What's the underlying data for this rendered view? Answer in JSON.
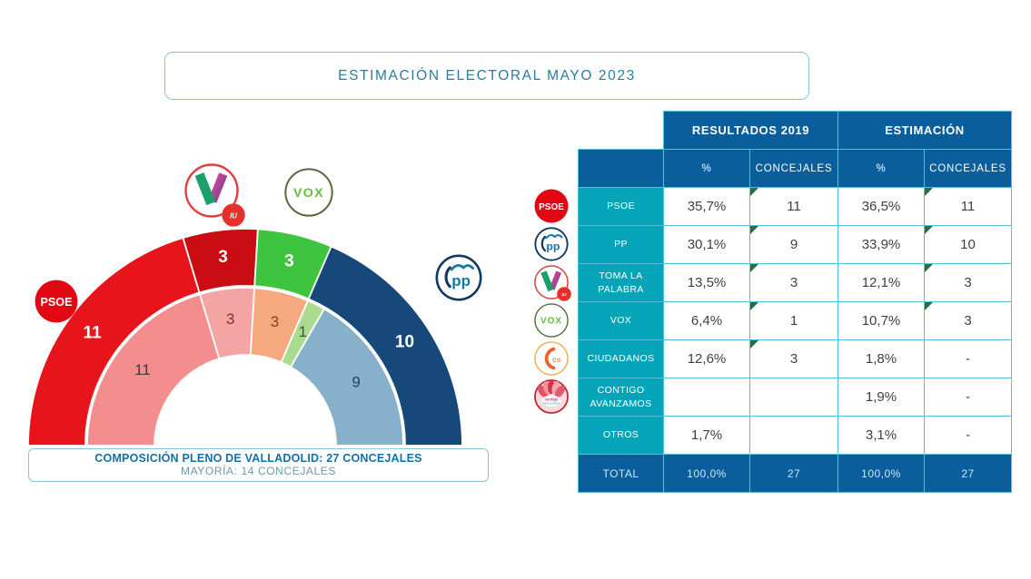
{
  "title": "ESTIMACIÓN ELECTORAL MAYO 2023",
  "caption": {
    "line1": "COMPOSICIÓN PLENO DE VALLADOLID: 27 CONCEJALES",
    "line2": "MAYORÍA: 14 CONCEJALES"
  },
  "table": {
    "group_headers": [
      "RESULTADOS 2019",
      "ESTIMACIÓN"
    ],
    "sub_headers": [
      "%",
      "CONCEJALES",
      "%",
      "CONCEJALES"
    ],
    "rows": [
      {
        "party": "PSOE",
        "logo": "psoe",
        "pct_2019": "35,7%",
        "seats_2019": "11",
        "pct_est": "36,5%",
        "seats_est": "11",
        "tri_2019": true,
        "tri_est": true
      },
      {
        "party": "PP",
        "logo": "pp",
        "pct_2019": "30,1%",
        "seats_2019": "9",
        "pct_est": "33,9%",
        "seats_est": "10",
        "tri_2019": true,
        "tri_est": true
      },
      {
        "party": "TOMA LA PALABRA",
        "logo": "tlp",
        "pct_2019": "13,5%",
        "seats_2019": "3",
        "pct_est": "12,1%",
        "seats_est": "3",
        "tri_2019": true,
        "tri_est": true
      },
      {
        "party": "VOX",
        "logo": "vox",
        "pct_2019": "6,4%",
        "seats_2019": "1",
        "pct_est": "10,7%",
        "seats_est": "3",
        "tri_2019": true,
        "tri_est": true
      },
      {
        "party": "CIUDADANOS",
        "logo": "cs",
        "pct_2019": "12,6%",
        "seats_2019": "3",
        "pct_est": "1,8%",
        "seats_est": "-",
        "tri_2019": true,
        "tri_est": false
      },
      {
        "party": "CONTIGO AVANZAMOS",
        "logo": "contigo",
        "pct_2019": "",
        "seats_2019": "",
        "pct_est": "1,9%",
        "seats_est": "-",
        "tri_2019": false,
        "tri_est": false
      },
      {
        "party": "OTROS",
        "logo": null,
        "pct_2019": "1,7%",
        "seats_2019": "",
        "pct_est": "3,1%",
        "seats_est": "-",
        "tri_2019": false,
        "tri_est": false
      }
    ],
    "total_row": {
      "label": "TOTAL",
      "pct_2019": "100,0%",
      "seats_2019": "27",
      "pct_est": "100,0%",
      "seats_est": "27"
    }
  },
  "chart_data": {
    "type": "hemicycle",
    "title": "Composición Pleno de Valladolid",
    "total_seats": 27,
    "majority_seats": 14,
    "rings": [
      {
        "name": "estimacion",
        "position": "outer",
        "segments": [
          {
            "party": "PSOE",
            "seats": 11,
            "color": "#E8141B",
            "label_color": "#FFFFFF"
          },
          {
            "party": "TOMA LA PALABRA",
            "seats": 3,
            "color": "#C90D13",
            "label_color": "#FFFFFF"
          },
          {
            "party": "VOX",
            "seats": 3,
            "color": "#3EC43E",
            "label_color": "#FFFFFF"
          },
          {
            "party": "PP",
            "seats": 10,
            "color": "#16497A",
            "label_color": "#FFFFFF"
          }
        ]
      },
      {
        "name": "resultados_2019",
        "position": "inner",
        "segments": [
          {
            "party": "PSOE",
            "seats": 11,
            "color": "#F48E8E",
            "label_color": "#3C3C3C"
          },
          {
            "party": "TOMA LA PALABRA",
            "seats": 3,
            "color": "#F5A4A4",
            "label_color": "#8F2D2D"
          },
          {
            "party": "CIUDADANOS",
            "seats": 3,
            "color": "#F6A87E",
            "label_color": "#83412A"
          },
          {
            "party": "VOX",
            "seats": 1,
            "color": "#AADC90",
            "label_color": "#44523F"
          },
          {
            "party": "PP",
            "seats": 9,
            "color": "#87B1CB",
            "label_color": "#23455F"
          }
        ]
      }
    ],
    "chart_logos": [
      "psoe",
      "tlp",
      "iu",
      "vox",
      "pp"
    ]
  },
  "colors": {
    "header_blue": "#0A5E9C",
    "label_teal": "#05A4B8",
    "grid_cyan": "#53BFD9",
    "accent_text": "#2B7CA3",
    "triangle_green": "#1E7245",
    "border_light_blue": "#8EC1D8"
  }
}
